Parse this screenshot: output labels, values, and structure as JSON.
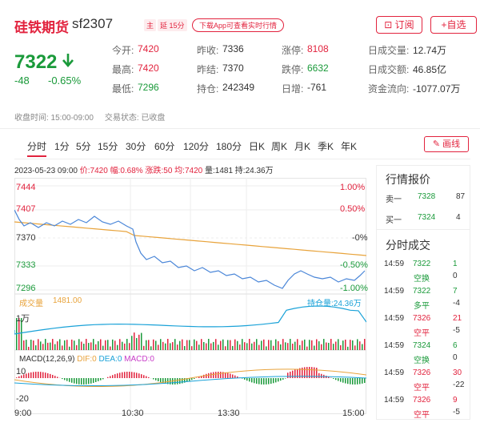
{
  "header": {
    "title": "硅铁期货",
    "code": "sf2307",
    "tag1": "主",
    "tag2": "延 15分",
    "app_button": "下载App可查看实时行情",
    "subscribe_button": "⊡ 订阅",
    "add_watch_button": "+自选"
  },
  "quote": {
    "price": "7322",
    "change": "-48",
    "change_pct": "-0.65%",
    "fields": [
      {
        "label": "今开:",
        "value": "7420",
        "color": "#e2233e"
      },
      {
        "label": "昨收:",
        "value": "7336",
        "color": "#333333"
      },
      {
        "label": "涨停:",
        "value": "8108",
        "color": "#e2233e"
      },
      {
        "label": "日成交量:",
        "value": "12.74万",
        "color": "#333333"
      },
      {
        "label": "最高:",
        "value": "7420",
        "color": "#e2233e"
      },
      {
        "label": "昨结:",
        "value": "7370",
        "color": "#333333"
      },
      {
        "label": "跌停:",
        "value": "6632",
        "color": "#1a9a3a"
      },
      {
        "label": "日成交额:",
        "value": "46.85亿",
        "color": "#333333"
      },
      {
        "label": "最低:",
        "value": "7296",
        "color": "#1a9a3a"
      },
      {
        "label": "持仓:",
        "value": "242349",
        "color": "#333333"
      },
      {
        "label": "日增:",
        "value": "-761",
        "color": "#333333"
      },
      {
        "label": "资金流向:",
        "value": "-1077.07万",
        "color": "#333333"
      }
    ]
  },
  "session": {
    "hours": "收盘时间: 15:00-09:00",
    "status": "交易状态: 已收盘"
  },
  "tabs": [
    "分时",
    "1分",
    "5分",
    "15分",
    "30分",
    "60分",
    "120分",
    "180分",
    "日K",
    "周K",
    "月K",
    "季K",
    "年K"
  ],
  "draw_button": "画线",
  "info_line": {
    "datetime": "2023-05-23 09:00",
    "price": "价:7420",
    "amp": "幅:0.68%",
    "change": "涨跌:50",
    "avg": "均:7420",
    "volume": "量:1481",
    "oi": "持:24.36万"
  },
  "chart_data": {
    "type": "line",
    "price_axis": [
      "7444",
      "7407",
      "7370",
      "7333",
      "7296"
    ],
    "pct_axis": [
      "1.00%",
      "0.50%",
      "-0%",
      "-0.50%",
      "-1.00%"
    ],
    "volume_label": "成交量",
    "volume_value": "1481.00",
    "oi_label": "持仓量:24.36万",
    "volume_axis": "1万",
    "macd_title": "MACD(12,26,9)",
    "macd_dif": "DIF:0",
    "macd_dea": "DEA:0",
    "macd_val": "MACD:0",
    "macd_axis": [
      "10",
      "-20"
    ],
    "time_labels": [
      "9:00",
      "10:30",
      "13:30",
      "15:00"
    ]
  },
  "orderbook": {
    "title": "行情报价",
    "rows": [
      {
        "label": "卖一",
        "price": "7328",
        "qty": "87"
      },
      {
        "label": "买一",
        "price": "7324",
        "qty": "4"
      }
    ]
  },
  "trades": {
    "title": "分时成交",
    "rows": [
      {
        "time": "14:59",
        "price": "7322",
        "qty": "1",
        "type": "空换",
        "delta": "0",
        "color": "#1a9a3a"
      },
      {
        "time": "14:59",
        "price": "7322",
        "qty": "7",
        "type": "多平",
        "delta": "-4",
        "color": "#1a9a3a"
      },
      {
        "time": "14:59",
        "price": "7326",
        "qty": "21",
        "type": "空平",
        "delta": "-5",
        "color": "#e2233e"
      },
      {
        "time": "14:59",
        "price": "7324",
        "qty": "6",
        "type": "空换",
        "delta": "0",
        "color": "#1a9a3a"
      },
      {
        "time": "14:59",
        "price": "7326",
        "qty": "30",
        "type": "空平",
        "delta": "-22",
        "color": "#e2233e"
      },
      {
        "time": "14:59",
        "price": "7326",
        "qty": "9",
        "type": "空平",
        "delta": "-5",
        "color": "#e2233e"
      }
    ]
  }
}
